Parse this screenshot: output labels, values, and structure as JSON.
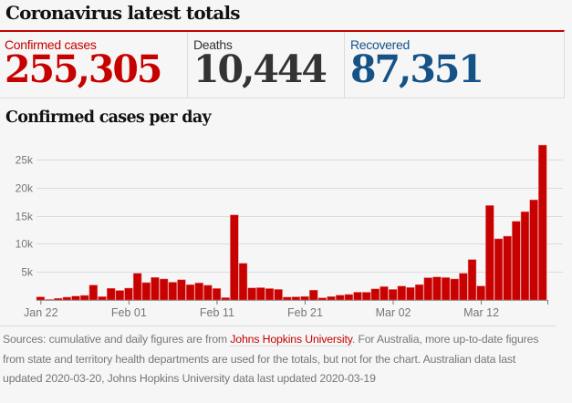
{
  "header": {
    "title": "Coronavirus latest totals"
  },
  "totals": [
    {
      "label": "Confirmed cases",
      "value": "255,305",
      "color": "#c70000"
    },
    {
      "label": "Deaths",
      "value": "10,444",
      "color": "#333333"
    },
    {
      "label": "Recovered",
      "value": "87,351",
      "color": "#155286"
    }
  ],
  "chart_data": {
    "type": "bar",
    "title": "Confirmed cases per day",
    "xlabel": "",
    "ylabel": "",
    "ylim": [
      0,
      28000
    ],
    "yticks": [
      5000,
      10000,
      15000,
      20000,
      25000
    ],
    "ytick_labels": [
      "5k",
      "10k",
      "15k",
      "20k",
      "25k"
    ],
    "xtick_labels": [
      "Jan 22",
      "Feb 01",
      "Feb 11",
      "Feb 21",
      "Mar 02",
      "Mar 12"
    ],
    "xtick_indices": [
      0,
      10,
      20,
      30,
      40,
      50
    ],
    "grid": true,
    "bar_color": "#c70000",
    "start_date": "Jan 22",
    "end_date": "Mar 19",
    "values": [
      555,
      98,
      288,
      493,
      684,
      809,
      2651,
      588,
      2068,
      1693,
      2111,
      4749,
      3094,
      4011,
      3743,
      3159,
      3597,
      2729,
      3030,
      2612,
      2046,
      419,
      15146,
      6517,
      2145,
      2194,
      2034,
      1878,
      503,
      558,
      621,
      1750,
      380,
      599,
      852,
      981,
      1383,
      1374,
      1977,
      2374,
      1877,
      2463,
      2218,
      2735,
      3966,
      4097,
      3991,
      3740,
      4737,
      7195,
      2488,
      16819,
      10890,
      11358,
      13999,
      15711,
      17818,
      27580
    ]
  },
  "footer": {
    "sources_prefix": "Sources: cumulative and daily figures are from ",
    "sources_link": "Johns Hopkins University",
    "sources_suffix": ". For Australia, more up-to-date figures from state and territory health departments are used for the totals, but not for the chart. Australian data last updated 2020-03-20, Johns Hopkins University data last updated 2020-03-19"
  }
}
